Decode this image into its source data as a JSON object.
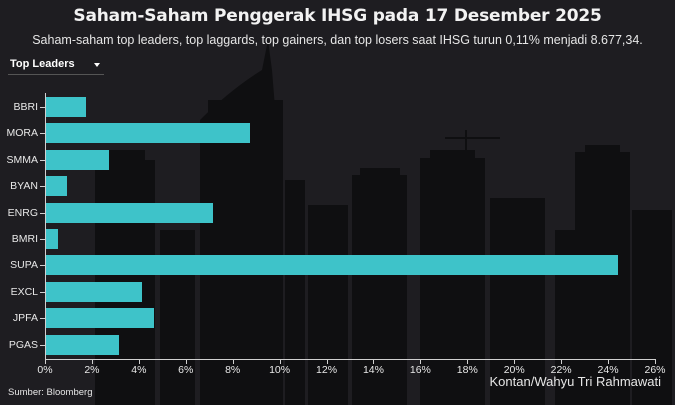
{
  "header": {
    "title": "Saham-Saham Penggerak IHSG pada 17 Desember 2025",
    "subtitle": "Saham-saham top leaders, top laggards, top gainers, dan top losers saat IHSG turun 0,11% menjadi 8.677,34."
  },
  "dropdown": {
    "selected": "Top Leaders",
    "icon": "caret-down-icon"
  },
  "footer": {
    "source": "Sumber: Bloomberg",
    "credit": "Kontan/Wahyu Tri Rahmawati"
  },
  "colors": {
    "background": "#1e1d21",
    "bar": "#3ec3c9",
    "text": "#ffffff"
  },
  "chart_data": {
    "type": "bar",
    "orientation": "horizontal",
    "title": "Saham-Saham Penggerak IHSG pada 17 Desember 2025",
    "subtitle": "Saham-saham top leaders, top laggards, top gainers, dan top losers saat IHSG turun 0,11% menjadi 8.677,34.",
    "categories": [
      "BBRI",
      "MORA",
      "SMMA",
      "BYAN",
      "ENRG",
      "BMRI",
      "SUPA",
      "EXCL",
      "JPFA",
      "PGAS"
    ],
    "values": [
      1.7,
      8.7,
      2.7,
      0.9,
      7.1,
      0.5,
      24.4,
      4.1,
      4.6,
      3.1
    ],
    "xlabel": "",
    "ylabel": "",
    "xlim": [
      0,
      26
    ],
    "xticks": [
      "0%",
      "2%",
      "4%",
      "6%",
      "8%",
      "10%",
      "12%",
      "14%",
      "16%",
      "18%",
      "20%",
      "22%",
      "24%",
      "26%"
    ],
    "grid": false,
    "legend": null
  }
}
